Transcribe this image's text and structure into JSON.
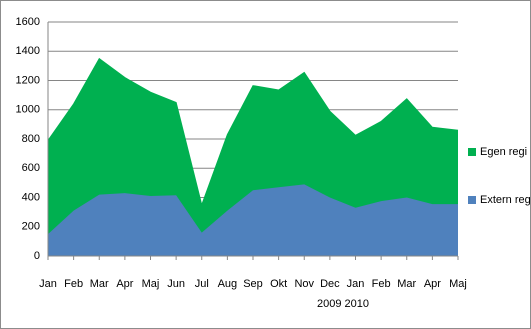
{
  "chart_data": {
    "type": "area",
    "stacked": true,
    "categories": [
      "Jan",
      "Feb",
      "Mar",
      "Apr",
      "Maj",
      "Jun",
      "Jul",
      "Aug",
      "Sep",
      "Okt",
      "Nov",
      "Dec",
      "Jan",
      "Feb",
      "Mar",
      "Apr",
      "Maj"
    ],
    "annotation": "2009 2010",
    "series": [
      {
        "name": "Extern regi",
        "color": "#4f81bd",
        "values": [
          150,
          310,
          420,
          430,
          410,
          415,
          160,
          310,
          450,
          470,
          490,
          400,
          330,
          375,
          400,
          355,
          355
        ]
      },
      {
        "name": "Egen regi",
        "color": "#00b050",
        "values": [
          640,
          730,
          930,
          790,
          710,
          635,
          190,
          520,
          715,
          665,
          765,
          590,
          495,
          545,
          675,
          525,
          505
        ]
      }
    ],
    "ylim": [
      0,
      1600
    ],
    "yticks": [
      0,
      200,
      400,
      600,
      800,
      1000,
      1200,
      1400,
      1600
    ],
    "grid": true,
    "legend": "right"
  }
}
